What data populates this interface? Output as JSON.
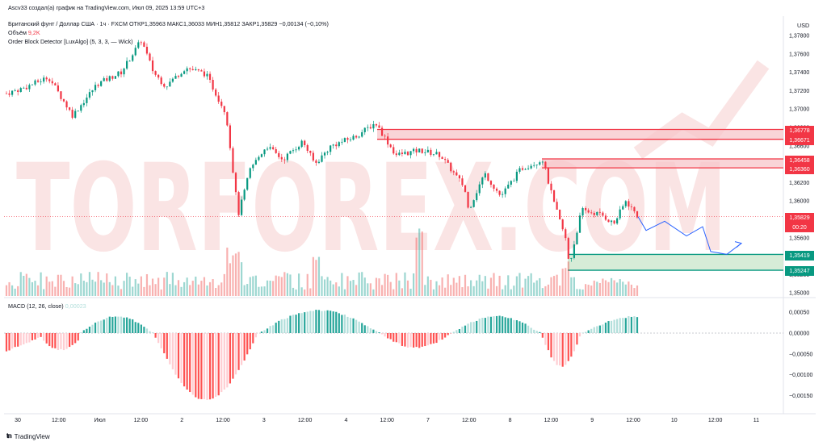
{
  "header": {
    "author_line": "Ascv33 создал(а) график на TradingView.com, Июл 09, 2025 13:59 UTC+3",
    "symbol_line": "Британский фунт / Доллар США · 1ч · FXCM  ОТКР1,35963  МАКС1,36033  МИН1,35812  ЗАКР1,35829  −0,00134 (−0,10%)",
    "volume_label": "Объём",
    "volume_value": "9,2K",
    "indicator_label": "Order Block Detector [LuxAlgo] (5, 3, 3, —   Wick)"
  },
  "currency": "USD",
  "watermark": "TORFOREX.COM",
  "footer": {
    "brand": "TradingView"
  },
  "macd_label": "MACD (12, 26, close)",
  "macd_value": "0,00023",
  "price_axis": [
    "1,37800",
    "1,37600",
    "1,37400",
    "1,37200",
    "1,37000",
    "1,36800",
    "1,36600",
    "1,36400",
    "1,36200",
    "1,36000",
    "1,35800",
    "1,35600",
    "1,35400",
    "1,35200",
    "1,35000"
  ],
  "macd_axis": [
    "0,00050",
    "0,00000",
    "−0,00050",
    "−0,00100",
    "−0,00150"
  ],
  "time_axis": [
    "30",
    "12:00",
    "Июл",
    "12:00",
    "2",
    "12:00",
    "3",
    "12:00",
    "4",
    "12:00",
    "7",
    "12:00",
    "8",
    "12:00",
    "9",
    "12:00",
    "10",
    "12:00",
    "11"
  ],
  "price_tags": {
    "ob1_top": "1,36778",
    "ob1_bottom": "1,36671",
    "ob2_top": "1,36458",
    "ob2_bottom": "1,36360",
    "current": "1,35829",
    "countdown": "00:20",
    "ob3_top": "1,35419",
    "ob3_bottom": "1,35247"
  },
  "colors": {
    "bull": "#089981",
    "bear": "#f23645",
    "bear_ob_fill": "#f7c6c9",
    "bull_ob_fill": "#c8e6c9",
    "projection": "#2962ff",
    "watermark": "#f2b3b3"
  },
  "chart_data": {
    "type": "candlestick",
    "price_range": [
      1.349,
      1.3795
    ],
    "order_blocks": [
      {
        "type": "bearish",
        "top": 1.36778,
        "bottom": 1.36671
      },
      {
        "type": "bearish",
        "top": 1.36458,
        "bottom": 1.3636
      },
      {
        "type": "bullish",
        "top": 1.35419,
        "bottom": 1.35247
      }
    ],
    "last_close": 1.35829,
    "projection_path": [
      1.3583,
      1.3568,
      1.3578,
      1.3562,
      1.3572,
      1.3545,
      1.3542,
      1.3554
    ],
    "macd_range": [
      -0.0018,
      0.00075
    ]
  }
}
